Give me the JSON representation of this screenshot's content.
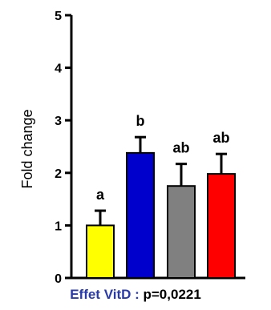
{
  "chart_data": {
    "type": "bar",
    "ylabel": "Fold change",
    "ylim": [
      0,
      5
    ],
    "yticks": [
      "0",
      "1",
      "2",
      "3",
      "4",
      "5"
    ],
    "categories": [
      "",
      "",
      "",
      ""
    ],
    "values": [
      1.0,
      2.38,
      1.75,
      1.98
    ],
    "errors": [
      0.28,
      0.3,
      0.42,
      0.38
    ],
    "significance_labels": [
      "a",
      "b",
      "ab",
      "ab"
    ],
    "colors": [
      "#ffff00",
      "#0000cc",
      "#808080",
      "#ff0000"
    ],
    "grid": false
  },
  "footer": {
    "effect_label": "Effet VitD :",
    "p_value": "p=0,0221"
  }
}
